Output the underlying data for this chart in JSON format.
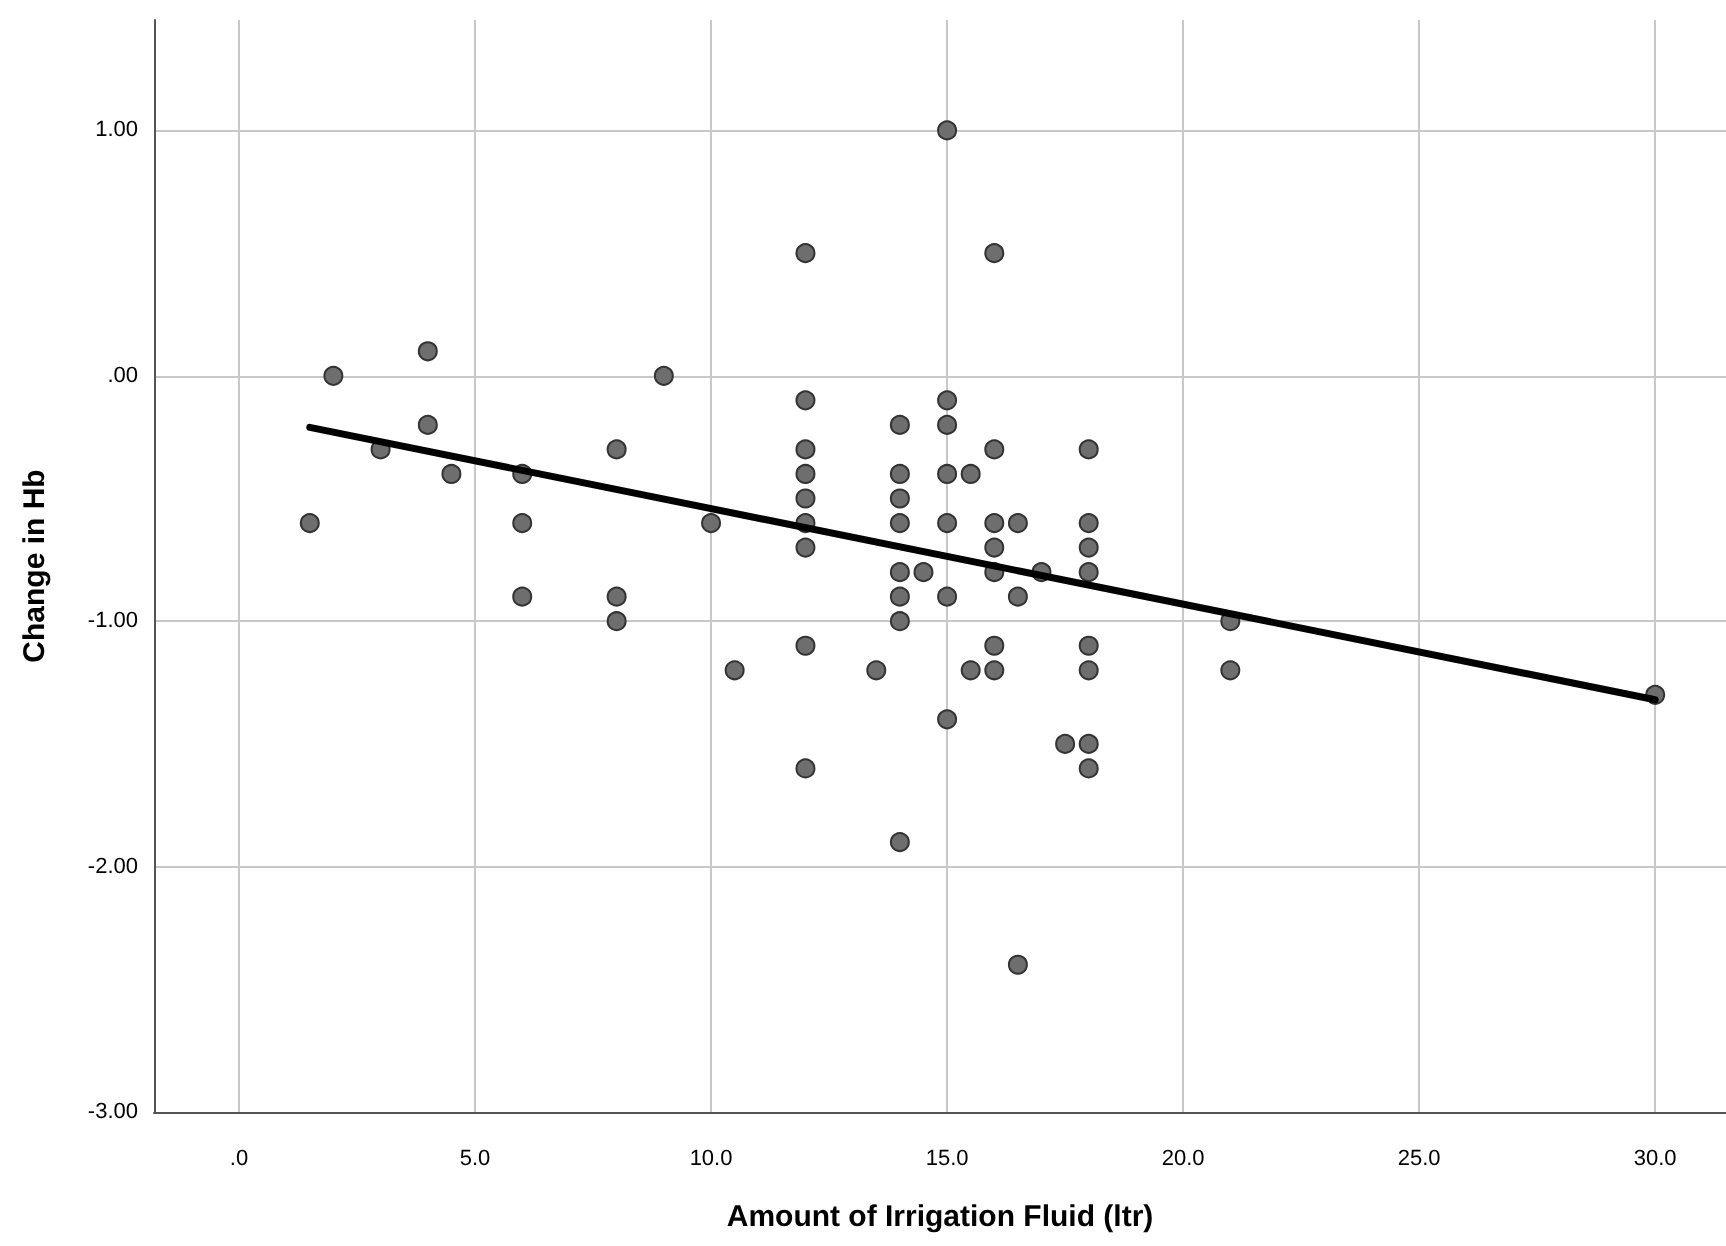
{
  "chart_data": {
    "type": "scatter",
    "xlabel": "Amount of Irrigation Fluid (ltr)",
    "ylabel": "Change in Hb",
    "xlim": [
      -1.8,
      31.5
    ],
    "ylim": [
      -3,
      1.45
    ],
    "xticks": [
      {
        "value": 0,
        "label": ".0"
      },
      {
        "value": 5,
        "label": "5.0"
      },
      {
        "value": 10,
        "label": "10.0"
      },
      {
        "value": 15,
        "label": "15.0"
      },
      {
        "value": 20,
        "label": "20.0"
      },
      {
        "value": 25,
        "label": "25.0"
      },
      {
        "value": 30,
        "label": "30.0"
      }
    ],
    "yticks": [
      {
        "value": -3,
        "label": "-3.00"
      },
      {
        "value": -2,
        "label": "-2.00"
      },
      {
        "value": -1,
        "label": "-1.00"
      },
      {
        "value": 0,
        "label": ".00"
      },
      {
        "value": 1,
        "label": "1.00"
      }
    ],
    "grid": true,
    "marker": "circle",
    "series": [
      {
        "color": "#6e6e6e",
        "x": [
          1.5,
          2,
          3,
          4,
          4,
          4.5,
          6,
          6,
          6,
          8,
          8,
          8,
          9,
          10,
          10.5,
          12,
          12,
          12,
          12,
          12,
          12,
          12,
          12,
          12,
          13.5,
          14,
          14,
          14,
          14,
          14,
          14,
          14,
          14,
          14.5,
          15,
          15,
          15,
          15,
          15,
          15,
          15,
          15.5,
          15.5,
          16,
          16,
          16,
          16,
          16,
          16,
          16,
          16.5,
          16.5,
          16.5,
          17,
          17.5,
          18,
          18,
          18,
          18,
          18,
          18,
          18,
          18,
          21,
          21,
          30
        ],
        "values": [
          -0.6,
          0,
          -0.3,
          0.1,
          -0.2,
          -0.4,
          -0.4,
          -0.6,
          -0.9,
          -0.3,
          -0.9,
          -1.0,
          0,
          -0.6,
          -1.2,
          0.5,
          -0.1,
          -0.3,
          -0.4,
          -0.5,
          -0.6,
          -0.7,
          -1.1,
          -1.6,
          -1.2,
          -0.2,
          -0.4,
          -0.5,
          -0.6,
          -0.8,
          -0.9,
          -1.0,
          -1.9,
          -0.8,
          1.0,
          -0.1,
          -0.2,
          -0.4,
          -0.6,
          -0.9,
          -1.4,
          -0.4,
          -1.2,
          0.5,
          -0.3,
          -0.6,
          -0.7,
          -0.8,
          -1.1,
          -1.2,
          -0.6,
          -0.9,
          -2.4,
          -0.8,
          -1.5,
          -0.3,
          -0.6,
          -0.7,
          -0.8,
          -1.1,
          -1.2,
          -1.5,
          -1.6,
          -1.0,
          -1.2,
          -1.3
        ]
      },
      {
        "type": "line",
        "color": "#000000",
        "marker": "none",
        "line_style": "solid",
        "x": [
          1.5,
          30
        ],
        "values": [
          -0.21,
          -1.32
        ]
      }
    ]
  }
}
